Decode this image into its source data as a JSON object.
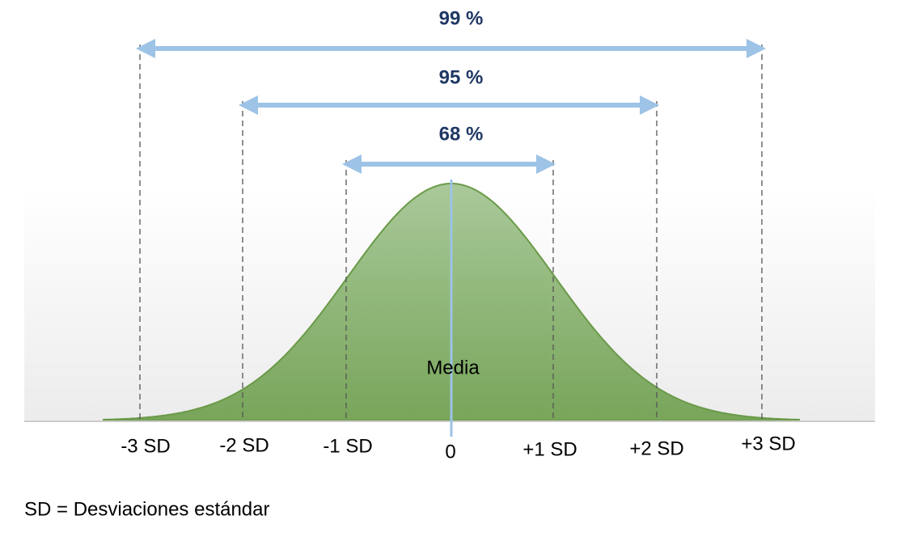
{
  "ranges": [
    {
      "label": "99 %"
    },
    {
      "label": "95 %"
    },
    {
      "label": "68 %"
    }
  ],
  "axis_labels": [
    "-3 SD",
    "-2 SD",
    "-1 SD",
    "0",
    "+1 SD",
    "+2 SD",
    "+3 SD"
  ],
  "mean_label": "Media",
  "footnote": "SD = Desviaciones estándar"
}
